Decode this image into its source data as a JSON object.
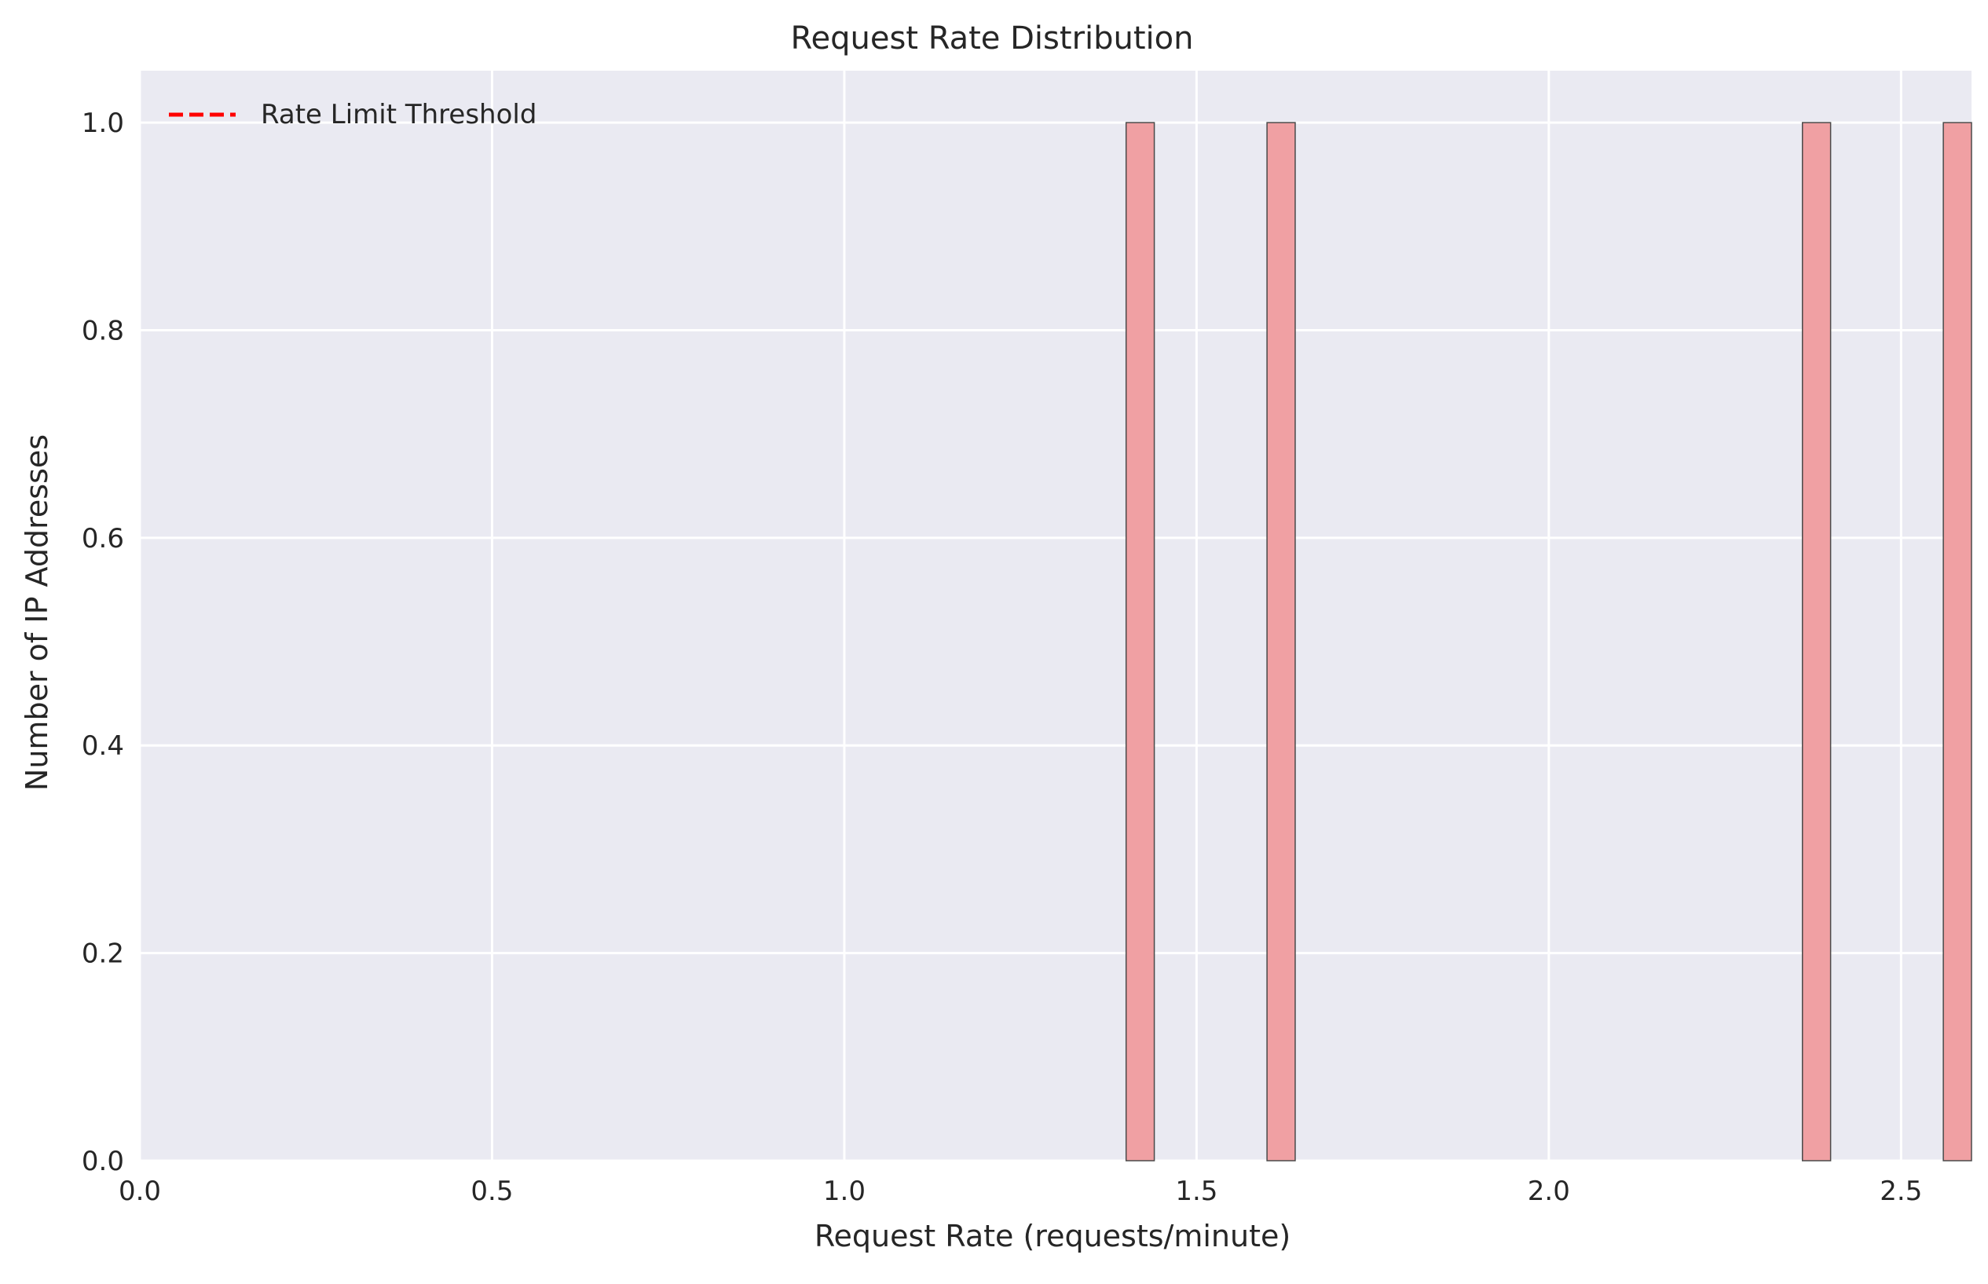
{
  "chart_data": {
    "type": "bar",
    "title": "Request Rate Distribution",
    "xlabel": "Request Rate (requests/minute)",
    "ylabel": "Number of IP Addresses",
    "xlim": [
      0,
      2.6
    ],
    "ylim": [
      0,
      1.05
    ],
    "x_ticks": [
      0.0,
      0.5,
      1.0,
      1.5,
      2.0,
      2.5
    ],
    "x_tick_labels": [
      "0.0",
      "0.5",
      "1.0",
      "1.5",
      "2.0",
      "2.5"
    ],
    "y_ticks": [
      0.0,
      0.2,
      0.4,
      0.6,
      0.8,
      1.0
    ],
    "y_tick_labels": [
      "0.0",
      "0.2",
      "0.4",
      "0.6",
      "0.8",
      "1.0"
    ],
    "bins": [
      {
        "start": 1.4,
        "end": 1.44,
        "count": 1
      },
      {
        "start": 1.6,
        "end": 1.64,
        "count": 1
      },
      {
        "start": 2.36,
        "end": 2.4,
        "count": 1
      },
      {
        "start": 2.56,
        "end": 2.6,
        "count": 1
      }
    ],
    "legend": {
      "placement": "top-left",
      "entries": [
        {
          "label": "Rate Limit Threshold",
          "style": "dashed",
          "color": "#ff0000"
        }
      ]
    },
    "grid": true,
    "colors": {
      "plot_background": "#eaeaf2",
      "grid": "#ffffff",
      "bar_fill": "#f0a0a3",
      "bar_edge": "#4a4a4a"
    }
  }
}
